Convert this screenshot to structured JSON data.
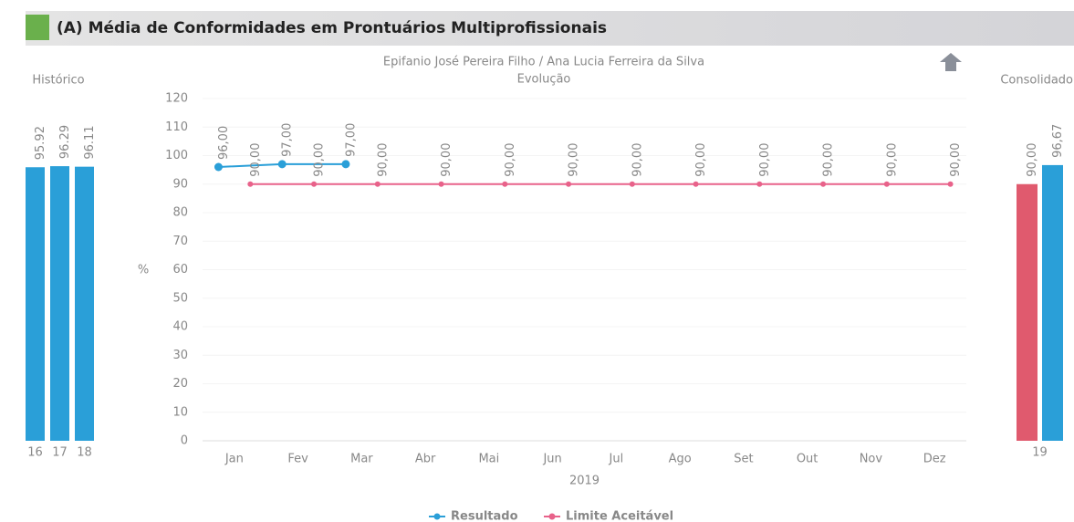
{
  "header": {
    "title": "(A) Média de Conformidades em Prontuários Multiprofissionais"
  },
  "chart_data": [
    {
      "type": "bar",
      "title": "Histórico",
      "categories": [
        "16",
        "17",
        "18"
      ],
      "values": [
        95.92,
        96.29,
        96.11
      ],
      "color": "#2a9fd8",
      "ylim": [
        0,
        120
      ]
    },
    {
      "type": "line",
      "title": "Epifanio José Pereira Filho / Ana Lucia Ferreira da Silva",
      "subtitle": "Evolução",
      "ylabel": "%",
      "xlabel": "2019",
      "categories": [
        "Jan",
        "Fev",
        "Mar",
        "Abr",
        "Mai",
        "Jun",
        "Jul",
        "Ago",
        "Set",
        "Out",
        "Nov",
        "Dez"
      ],
      "series": [
        {
          "name": "Resultado",
          "color": "#2a9fd8",
          "values": [
            96,
            97,
            97,
            null,
            null,
            null,
            null,
            null,
            null,
            null,
            null,
            null
          ],
          "value_labels": [
            "96,00",
            "97,00",
            "97,00",
            null,
            null,
            null,
            null,
            null,
            null,
            null,
            null,
            null
          ]
        },
        {
          "name": "Limite Aceitável",
          "color": "#e8628a",
          "values": [
            90,
            90,
            90,
            90,
            90,
            90,
            90,
            90,
            90,
            90,
            90,
            90
          ],
          "value_labels": [
            "90,00",
            "90,00",
            "90,00",
            "90,00",
            "90,00",
            "90,00",
            "90,00",
            "90,00",
            "90,00",
            "90,00",
            "90,00",
            "90,00"
          ]
        }
      ],
      "ylim": [
        0,
        120
      ],
      "yticks": [
        0,
        10,
        20,
        30,
        40,
        50,
        60,
        70,
        80,
        90,
        100,
        110,
        120
      ],
      "grid": true
    },
    {
      "type": "bar",
      "title": "Consolidado",
      "categories": [
        "19"
      ],
      "series": [
        {
          "color": "#e05a6e",
          "values": [
            90
          ],
          "value_labels": [
            "90,00"
          ]
        },
        {
          "color": "#2a9fd8",
          "values": [
            96.67
          ],
          "value_labels": [
            "96,67"
          ]
        }
      ],
      "ylim": [
        0,
        120
      ]
    }
  ]
}
